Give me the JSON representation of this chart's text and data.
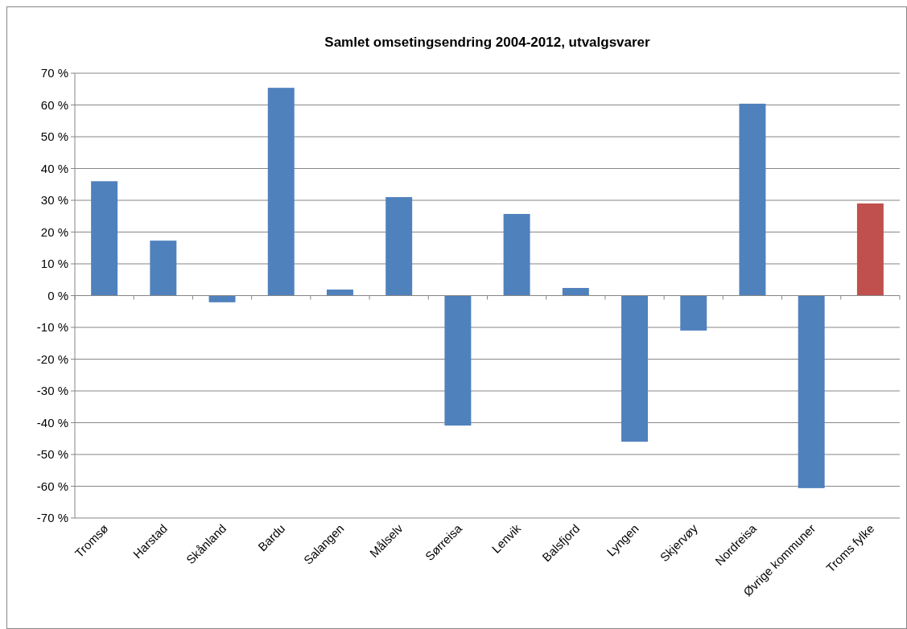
{
  "chart_data": {
    "type": "bar",
    "title": "Samlet omsetingsendring 2004-2012, utvalgsvarer",
    "categories": [
      "Tromsø",
      "Harstad",
      "Skånland",
      "Bardu",
      "Salangen",
      "Målselv",
      "Sørreisa",
      "Lenvik",
      "Balsfjord",
      "Lyngen",
      "Skjervøy",
      "Nordreisa",
      "Øvrige kommuner",
      "Troms fylke"
    ],
    "values": [
      36,
      17.3,
      -2.1,
      65.4,
      1.9,
      31,
      -40.9,
      25.7,
      2.4,
      -46,
      -11,
      60.4,
      -60.6,
      29
    ],
    "colors": [
      "#4f81bd",
      "#4f81bd",
      "#4f81bd",
      "#4f81bd",
      "#4f81bd",
      "#4f81bd",
      "#4f81bd",
      "#4f81bd",
      "#4f81bd",
      "#4f81bd",
      "#4f81bd",
      "#4f81bd",
      "#4f81bd",
      "#c0504d"
    ],
    "ylim": [
      -70,
      70
    ],
    "yticks": [
      {
        "value": -70,
        "label": "-70 %"
      },
      {
        "value": -60,
        "label": "-60 %"
      },
      {
        "value": -50,
        "label": "-50 %"
      },
      {
        "value": -40,
        "label": "-40 %"
      },
      {
        "value": -30,
        "label": "-30 %"
      },
      {
        "value": -20,
        "label": "-20 %"
      },
      {
        "value": -10,
        "label": "-10 %"
      },
      {
        "value": 0,
        "label": "0 %"
      },
      {
        "value": 10,
        "label": "10 %"
      },
      {
        "value": 20,
        "label": "20 %"
      },
      {
        "value": 30,
        "label": "30 %"
      },
      {
        "value": 40,
        "label": "40 %"
      },
      {
        "value": 50,
        "label": "50 %"
      },
      {
        "value": 60,
        "label": "60 %"
      },
      {
        "value": 70,
        "label": "70 %"
      }
    ],
    "grid": "y"
  }
}
